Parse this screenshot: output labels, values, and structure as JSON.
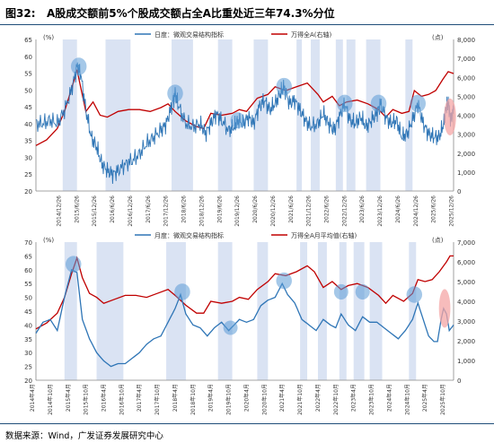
{
  "figure": {
    "number": "图32:",
    "title": "A股成交额前5%个股成交额占全A比重处近三年74.3%分位",
    "source": "数据来源：Wind，广发证券发展研究中心"
  },
  "colors": {
    "blue": "#2e75b6",
    "red": "#c00000",
    "band": "#dae3f3",
    "circle": "#5b9bd5",
    "pink": "#f4a6a6"
  },
  "chart_data": [
    {
      "type": "line",
      "title": "",
      "left_unit": "(%)",
      "right_unit": "(点)",
      "legend": {
        "blue": "日度：微观交易结构指标",
        "red": "万得全A(右轴)"
      },
      "ylim_left": [
        20,
        65
      ],
      "yticks_left": [
        20,
        25,
        30,
        35,
        40,
        45,
        50,
        55,
        60,
        65
      ],
      "ylim_right": [
        0,
        8000
      ],
      "yticks_right": [
        "0",
        "1,000",
        "2,000",
        "3,000",
        "4,000",
        "5,000",
        "6,000",
        "7,000",
        "8,000"
      ],
      "x_range": [
        2014.3,
        2026.0
      ],
      "xticks": [
        "2014/12/26",
        "2015/6/26",
        "2015/12/26",
        "2016/6/26",
        "2016/12/26",
        "2017/6/26",
        "2017/12/26",
        "2018/6/26",
        "2018/12/26",
        "2019/6/26",
        "2019/12/26",
        "2020/6/26",
        "2020/12/26",
        "2021/6/26",
        "2021/12/26",
        "2022/6/26",
        "2022/12/26",
        "2023/6/26",
        "2023/12/26",
        "2024/6/26",
        "2024/12/26",
        "2025/6/26",
        "2025/12/26"
      ],
      "xtick_pos": [
        2014.99,
        2015.49,
        2015.99,
        2016.49,
        2016.99,
        2017.49,
        2017.99,
        2018.49,
        2018.99,
        2019.49,
        2019.99,
        2020.49,
        2020.99,
        2021.49,
        2021.99,
        2022.49,
        2022.99,
        2023.49,
        2023.99,
        2024.49,
        2024.99,
        2025.49,
        2025.99
      ],
      "bands": [
        [
          2015.05,
          2015.45
        ],
        [
          2016.25,
          2016.95
        ],
        [
          2018.1,
          2018.7
        ],
        [
          2019.4,
          2019.8
        ],
        [
          2020.4,
          2020.8
        ],
        [
          2021.6,
          2021.75
        ],
        [
          2022.0,
          2022.25
        ],
        [
          2022.7,
          2022.9
        ],
        [
          2023.0,
          2023.25
        ],
        [
          2023.55,
          2023.95
        ],
        [
          2024.65,
          2024.85
        ]
      ],
      "circles": [
        [
          2015.5,
          57,
          0.22,
          2.6
        ],
        [
          2018.2,
          49,
          0.22,
          2.6
        ],
        [
          2019.95,
          41,
          0.2,
          2.4
        ],
        [
          2021.25,
          51,
          0.22,
          2.6
        ],
        [
          2022.95,
          46,
          0.22,
          2.6
        ],
        [
          2023.9,
          46,
          0.22,
          2.6
        ],
        [
          2025.0,
          46,
          0.22,
          2.6
        ]
      ],
      "pink_ellipse": [
        2025.9,
        42,
        0.17,
        5.5
      ],
      "blue_series": [
        [
          2014.3,
          40
        ],
        [
          2014.5,
          40
        ],
        [
          2014.7,
          41
        ],
        [
          2014.9,
          40
        ],
        [
          2015.1,
          44
        ],
        [
          2015.3,
          50
        ],
        [
          2015.45,
          57
        ],
        [
          2015.55,
          55
        ],
        [
          2015.7,
          44
        ],
        [
          2015.85,
          36
        ],
        [
          2016.0,
          33
        ],
        [
          2016.15,
          28
        ],
        [
          2016.3,
          26
        ],
        [
          2016.45,
          25
        ],
        [
          2016.6,
          26
        ],
        [
          2016.8,
          28
        ],
        [
          2017.0,
          29
        ],
        [
          2017.2,
          31
        ],
        [
          2017.4,
          34
        ],
        [
          2017.6,
          36
        ],
        [
          2017.8,
          38
        ],
        [
          2017.95,
          40
        ],
        [
          2018.1,
          45
        ],
        [
          2018.2,
          49
        ],
        [
          2018.3,
          45
        ],
        [
          2018.5,
          40
        ],
        [
          2018.7,
          39
        ],
        [
          2018.9,
          40
        ],
        [
          2019.05,
          37
        ],
        [
          2019.2,
          40
        ],
        [
          2019.35,
          43
        ],
        [
          2019.5,
          41
        ],
        [
          2019.7,
          38
        ],
        [
          2019.85,
          39
        ],
        [
          2019.95,
          41
        ],
        [
          2020.1,
          40
        ],
        [
          2020.25,
          42
        ],
        [
          2020.4,
          40
        ],
        [
          2020.55,
          45
        ],
        [
          2020.7,
          47
        ],
        [
          2020.85,
          44
        ],
        [
          2021.0,
          46
        ],
        [
          2021.15,
          49
        ],
        [
          2021.25,
          51
        ],
        [
          2021.4,
          46
        ],
        [
          2021.55,
          47
        ],
        [
          2021.7,
          44
        ],
        [
          2021.85,
          41
        ],
        [
          2022.0,
          39
        ],
        [
          2022.2,
          40
        ],
        [
          2022.35,
          43
        ],
        [
          2022.5,
          40
        ],
        [
          2022.65,
          38
        ],
        [
          2022.8,
          42
        ],
        [
          2022.95,
          46
        ],
        [
          2023.1,
          41
        ],
        [
          2023.25,
          40
        ],
        [
          2023.4,
          42
        ],
        [
          2023.55,
          39
        ],
        [
          2023.7,
          41
        ],
        [
          2023.85,
          43
        ],
        [
          2023.95,
          46
        ],
        [
          2024.1,
          42
        ],
        [
          2024.25,
          40
        ],
        [
          2024.4,
          41
        ],
        [
          2024.55,
          36
        ],
        [
          2024.7,
          37
        ],
        [
          2024.85,
          41
        ],
        [
          2025.0,
          46
        ],
        [
          2025.15,
          40
        ],
        [
          2025.3,
          37
        ],
        [
          2025.45,
          36
        ],
        [
          2025.6,
          36
        ],
        [
          2025.72,
          40
        ],
        [
          2025.8,
          45
        ],
        [
          2025.86,
          46
        ],
        [
          2025.92,
          41
        ],
        [
          2026.0,
          44
        ]
      ],
      "red_series": [
        [
          2014.3,
          2400
        ],
        [
          2014.6,
          2700
        ],
        [
          2014.9,
          3300
        ],
        [
          2015.1,
          4200
        ],
        [
          2015.3,
          5400
        ],
        [
          2015.45,
          6400
        ],
        [
          2015.55,
          5500
        ],
        [
          2015.7,
          4200
        ],
        [
          2015.9,
          4700
        ],
        [
          2016.1,
          4000
        ],
        [
          2016.3,
          3900
        ],
        [
          2016.6,
          4200
        ],
        [
          2016.9,
          4300
        ],
        [
          2017.2,
          4300
        ],
        [
          2017.5,
          4200
        ],
        [
          2017.8,
          4400
        ],
        [
          2018.0,
          4600
        ],
        [
          2018.2,
          4200
        ],
        [
          2018.5,
          3700
        ],
        [
          2018.8,
          3400
        ],
        [
          2019.0,
          3300
        ],
        [
          2019.2,
          4100
        ],
        [
          2019.5,
          4000
        ],
        [
          2019.8,
          4100
        ],
        [
          2020.0,
          4300
        ],
        [
          2020.2,
          4200
        ],
        [
          2020.5,
          4900
        ],
        [
          2020.8,
          5100
        ],
        [
          2021.0,
          5500
        ],
        [
          2021.3,
          5300
        ],
        [
          2021.6,
          5500
        ],
        [
          2021.9,
          5700
        ],
        [
          2022.2,
          5100
        ],
        [
          2022.35,
          4700
        ],
        [
          2022.6,
          5000
        ],
        [
          2022.8,
          4500
        ],
        [
          2023.0,
          4700
        ],
        [
          2023.3,
          4800
        ],
        [
          2023.6,
          4600
        ],
        [
          2023.9,
          4300
        ],
        [
          2024.1,
          3900
        ],
        [
          2024.3,
          4300
        ],
        [
          2024.55,
          4100
        ],
        [
          2024.75,
          4200
        ],
        [
          2024.9,
          5300
        ],
        [
          2025.1,
          5000
        ],
        [
          2025.3,
          5100
        ],
        [
          2025.5,
          5300
        ],
        [
          2025.7,
          5900
        ],
        [
          2025.85,
          6300
        ],
        [
          2026.0,
          6200
        ]
      ]
    },
    {
      "type": "line",
      "title": "",
      "left_unit": "(%)",
      "right_unit": "(点)",
      "legend": {
        "blue": "月度：微观交易结构指标",
        "red": "万得全A月平均值(右轴)"
      },
      "ylim_left": [
        20,
        70
      ],
      "yticks_left": [
        20,
        25,
        30,
        35,
        40,
        45,
        50,
        55,
        60,
        65,
        70
      ],
      "ylim_right": [
        0,
        7000
      ],
      "yticks_right": [
        "0",
        "1,000",
        "2,000",
        "3,000",
        "4,000",
        "5,000",
        "6,000",
        "7,000"
      ],
      "x_range": [
        2014.3,
        2026.0
      ],
      "xticks": [
        "2014年4月",
        "2014年10月",
        "2015年4月",
        "2015年10月",
        "2016年4月",
        "2016年10月",
        "2017年4月",
        "2017年10月",
        "2018年4月",
        "2018年10月",
        "2019年4月",
        "2019年10月",
        "2020年4月",
        "2020年10月",
        "2021年4月",
        "2021年10月",
        "2022年4月",
        "2022年10月",
        "2023年4月",
        "2023年10月",
        "2024年4月",
        "2024年10月",
        "2025年4月",
        "2025年10月"
      ],
      "xtick_pos": [
        2014.25,
        2014.75,
        2015.25,
        2015.75,
        2016.25,
        2016.75,
        2017.25,
        2017.75,
        2018.25,
        2018.75,
        2019.25,
        2019.75,
        2020.25,
        2020.75,
        2021.25,
        2021.75,
        2022.25,
        2022.75,
        2023.25,
        2023.75,
        2024.25,
        2024.75,
        2025.25,
        2025.75
      ],
      "bands": [
        [
          2015.1,
          2015.45
        ],
        [
          2016.0,
          2016.75
        ],
        [
          2017.95,
          2018.5
        ],
        [
          2019.4,
          2019.8
        ],
        [
          2020.5,
          2020.8
        ],
        [
          2021.7,
          2021.9
        ],
        [
          2022.2,
          2022.45
        ],
        [
          2022.8,
          2023.0
        ],
        [
          2023.2,
          2023.5
        ],
        [
          2023.65,
          2024.0
        ],
        [
          2024.75,
          2024.95
        ]
      ],
      "circles": [
        [
          2015.35,
          62,
          0.22,
          3.0
        ],
        [
          2018.4,
          52,
          0.22,
          3.0
        ],
        [
          2019.75,
          39,
          0.2,
          2.6
        ],
        [
          2021.25,
          56,
          0.22,
          3.0
        ],
        [
          2022.85,
          52,
          0.2,
          2.8
        ],
        [
          2023.45,
          52,
          0.2,
          2.8
        ],
        [
          2024.9,
          51,
          0.22,
          3.0
        ]
      ],
      "pink_ellipse": [
        2025.75,
        46,
        0.16,
        7.0
      ],
      "blue_series": [
        [
          2014.3,
          37
        ],
        [
          2014.5,
          41
        ],
        [
          2014.7,
          42
        ],
        [
          2014.9,
          38
        ],
        [
          2015.1,
          50
        ],
        [
          2015.3,
          60
        ],
        [
          2015.45,
          59
        ],
        [
          2015.6,
          42
        ],
        [
          2015.8,
          35
        ],
        [
          2016.0,
          30
        ],
        [
          2016.2,
          27
        ],
        [
          2016.4,
          25
        ],
        [
          2016.6,
          26
        ],
        [
          2016.8,
          26
        ],
        [
          2017.0,
          28
        ],
        [
          2017.2,
          30
        ],
        [
          2017.4,
          33
        ],
        [
          2017.6,
          35
        ],
        [
          2017.8,
          36
        ],
        [
          2018.0,
          41
        ],
        [
          2018.2,
          46
        ],
        [
          2018.35,
          51
        ],
        [
          2018.5,
          44
        ],
        [
          2018.7,
          40
        ],
        [
          2018.9,
          39
        ],
        [
          2019.1,
          36
        ],
        [
          2019.3,
          39
        ],
        [
          2019.5,
          41
        ],
        [
          2019.7,
          38
        ],
        [
          2019.85,
          40
        ],
        [
          2020.0,
          42
        ],
        [
          2020.2,
          41
        ],
        [
          2020.4,
          42
        ],
        [
          2020.6,
          47
        ],
        [
          2020.8,
          49
        ],
        [
          2021.0,
          50
        ],
        [
          2021.2,
          55
        ],
        [
          2021.35,
          51
        ],
        [
          2021.55,
          48
        ],
        [
          2021.75,
          42
        ],
        [
          2021.95,
          40
        ],
        [
          2022.15,
          38
        ],
        [
          2022.35,
          42
        ],
        [
          2022.55,
          40
        ],
        [
          2022.7,
          39
        ],
        [
          2022.85,
          44
        ],
        [
          2023.05,
          40
        ],
        [
          2023.25,
          38
        ],
        [
          2023.45,
          43
        ],
        [
          2023.65,
          41
        ],
        [
          2023.85,
          41
        ],
        [
          2024.05,
          39
        ],
        [
          2024.25,
          37
        ],
        [
          2024.45,
          35
        ],
        [
          2024.65,
          38
        ],
        [
          2024.85,
          42
        ],
        [
          2025.0,
          48
        ],
        [
          2025.15,
          42
        ],
        [
          2025.3,
          36
        ],
        [
          2025.45,
          34
        ],
        [
          2025.55,
          34
        ],
        [
          2025.65,
          42
        ],
        [
          2025.72,
          46
        ],
        [
          2025.8,
          44
        ],
        [
          2025.88,
          38
        ],
        [
          2026.0,
          40
        ]
      ],
      "red_series": [
        [
          2014.3,
          2600
        ],
        [
          2014.6,
          2900
        ],
        [
          2014.9,
          3400
        ],
        [
          2015.1,
          4200
        ],
        [
          2015.3,
          5400
        ],
        [
          2015.45,
          6200
        ],
        [
          2015.6,
          5200
        ],
        [
          2015.8,
          4400
        ],
        [
          2016.0,
          4200
        ],
        [
          2016.2,
          3900
        ],
        [
          2016.5,
          4100
        ],
        [
          2016.8,
          4300
        ],
        [
          2017.1,
          4300
        ],
        [
          2017.4,
          4200
        ],
        [
          2017.7,
          4400
        ],
        [
          2018.0,
          4600
        ],
        [
          2018.2,
          4300
        ],
        [
          2018.5,
          3800
        ],
        [
          2018.8,
          3400
        ],
        [
          2019.0,
          3400
        ],
        [
          2019.2,
          4000
        ],
        [
          2019.5,
          3900
        ],
        [
          2019.8,
          4000
        ],
        [
          2020.0,
          4200
        ],
        [
          2020.25,
          4100
        ],
        [
          2020.5,
          4600
        ],
        [
          2020.8,
          5000
        ],
        [
          2021.0,
          5400
        ],
        [
          2021.3,
          5300
        ],
        [
          2021.6,
          5500
        ],
        [
          2021.9,
          5800
        ],
        [
          2022.1,
          5500
        ],
        [
          2022.35,
          4700
        ],
        [
          2022.6,
          5000
        ],
        [
          2022.85,
          4600
        ],
        [
          2023.05,
          4800
        ],
        [
          2023.3,
          4900
        ],
        [
          2023.6,
          4700
        ],
        [
          2023.9,
          4300
        ],
        [
          2024.1,
          3900
        ],
        [
          2024.3,
          4300
        ],
        [
          2024.6,
          4000
        ],
        [
          2024.85,
          4400
        ],
        [
          2025.0,
          5100
        ],
        [
          2025.2,
          5000
        ],
        [
          2025.4,
          5100
        ],
        [
          2025.6,
          5500
        ],
        [
          2025.8,
          6000
        ],
        [
          2025.9,
          6300
        ],
        [
          2026.0,
          6300
        ]
      ]
    }
  ]
}
